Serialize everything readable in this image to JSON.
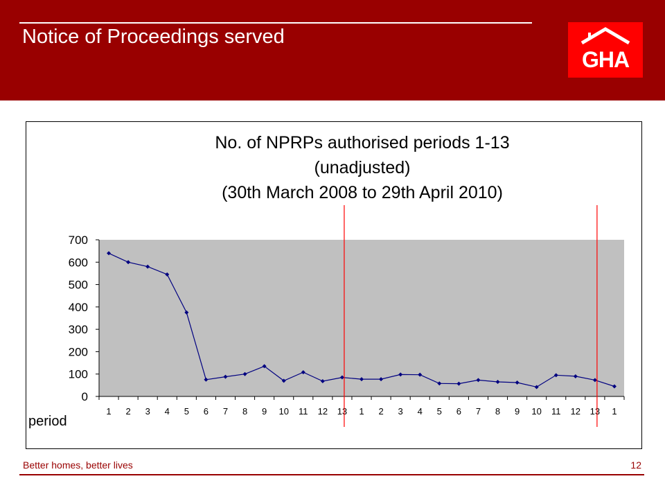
{
  "slide": {
    "title": "Notice of Proceedings served",
    "logo_text": "GHA",
    "footer_left": "Better homes, better lives",
    "page_number": "12"
  },
  "colors": {
    "header": "#990000",
    "logo": "#ff0000",
    "plot_area": "#c0c0c0",
    "series": "#000080",
    "marker_line": "#ff0000"
  },
  "chart_data": {
    "type": "line",
    "title_lines": [
      "No. of NPRPs authorised periods 1-13",
      "(unadjusted)",
      "(30th March 2008 to 29th April 2010)"
    ],
    "xlabel": "period",
    "ylabel": "",
    "ylim": [
      0,
      700
    ],
    "yticks": [
      0,
      100,
      200,
      300,
      400,
      500,
      600,
      700
    ],
    "grid": false,
    "legend": "none",
    "categories": [
      "1",
      "2",
      "3",
      "4",
      "5",
      "6",
      "7",
      "8",
      "9",
      "10",
      "11",
      "12",
      "13",
      "1",
      "2",
      "3",
      "4",
      "5",
      "6",
      "7",
      "8",
      "9",
      "10",
      "11",
      "12",
      "13",
      "1"
    ],
    "series": [
      {
        "values": [
          640,
          600,
          580,
          545,
          375,
          75,
          88,
          100,
          135,
          70,
          108,
          68,
          85,
          77,
          77,
          98,
          97,
          58,
          57,
          73,
          65,
          62,
          42,
          95,
          90,
          73,
          45
        ]
      }
    ],
    "vertical_markers_after_category_index": [
      12,
      25
    ]
  }
}
